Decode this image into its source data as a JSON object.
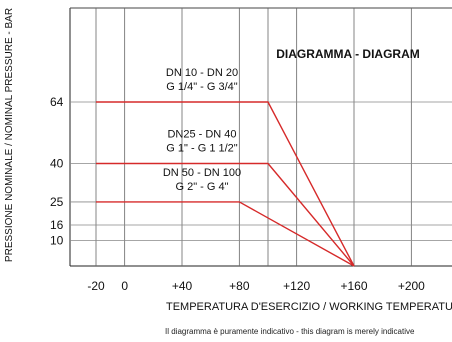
{
  "chart_data": {
    "type": "line",
    "title": "DIAGRAMMA - DIAGRAM",
    "xlabel": "TEMPERATURA D'ESERCIZIO / WORKING TEMPERATURE - °C",
    "ylabel": "PRESSIONE NOMINALE / NOMINAL PRESSURE - BAR",
    "xlim": [
      -30,
      210
    ],
    "ylim": [
      0,
      80
    ],
    "x_ticks": [
      "-20",
      "0",
      "+40",
      "+80",
      "+120",
      "+160",
      "+200"
    ],
    "y_ticks": [
      {
        "value": 64,
        "label": "64"
      },
      {
        "value": 40,
        "label": "40"
      },
      {
        "value": 25,
        "label": "25"
      },
      {
        "value": 16,
        "label": "16"
      },
      {
        "value": 10,
        "label": "10"
      }
    ],
    "series": [
      {
        "name": "DN 10 - DN 20",
        "name2": "G 1/4\" - G 3/4\"",
        "x": [
          -20,
          100,
          160
        ],
        "y": [
          64,
          64,
          0
        ]
      },
      {
        "name": "DN25 - DN 40",
        "name2": "G 1\" - G 1 1/2\"",
        "x": [
          -20,
          100,
          160
        ],
        "y": [
          40,
          40,
          0
        ]
      },
      {
        "name": "DN 50 - DN 100",
        "name2": "G 2\" - G 4\"",
        "x": [
          -20,
          80,
          160
        ],
        "y": [
          25,
          25,
          0
        ]
      }
    ],
    "note": "Il diagramma è puramente indicativo - this diagram is merely indicative",
    "grid": true,
    "line_color": "#d62a2a"
  }
}
